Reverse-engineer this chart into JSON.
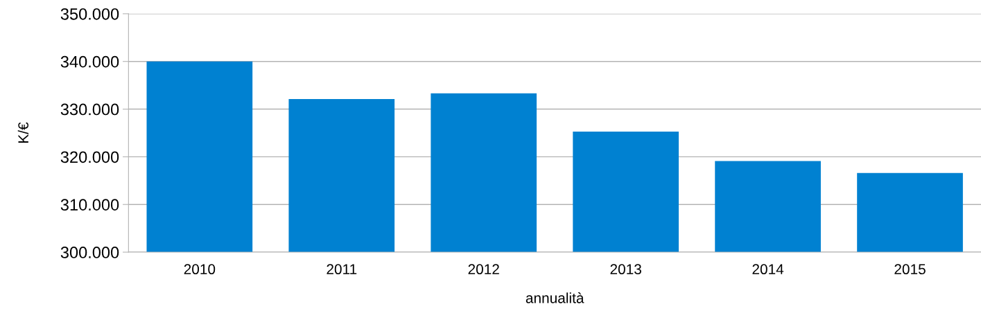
{
  "chart_data": {
    "type": "bar",
    "xlabel": "annualità",
    "ylabel": "K/€",
    "categories": [
      "2010",
      "2011",
      "2012",
      "2013",
      "2014",
      "2015"
    ],
    "values": [
      340000,
      332100,
      333300,
      325300,
      319100,
      316600
    ],
    "color": "#0081d1",
    "ylim": [
      300000,
      350000
    ],
    "yticks": [
      {
        "value": 300000,
        "label": "300.000"
      },
      {
        "value": 310000,
        "label": "310.000"
      },
      {
        "value": 320000,
        "label": "320.000"
      },
      {
        "value": 330000,
        "label": "330.000"
      },
      {
        "value": 340000,
        "label": "340.000"
      },
      {
        "value": 350000,
        "label": "350.000"
      }
    ],
    "grid": "y",
    "legend": false
  }
}
